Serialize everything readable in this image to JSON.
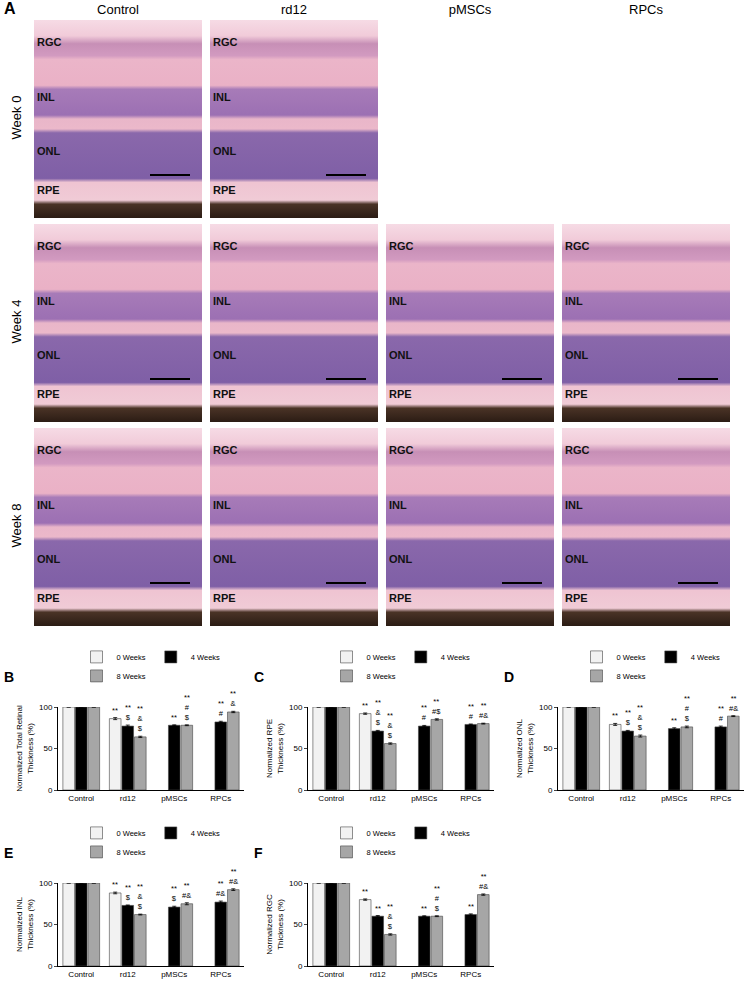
{
  "panel_a": {
    "label": "A",
    "columns": [
      "Control",
      "rd12",
      "pMSCs",
      "RPCs"
    ],
    "rows": [
      "Week 0",
      "Week 4",
      "Week 8"
    ],
    "layers": [
      "RGC",
      "INL",
      "ONL",
      "RPE"
    ],
    "images": [
      [
        true,
        true,
        false,
        false
      ],
      [
        true,
        true,
        true,
        true
      ],
      [
        true,
        true,
        true,
        true
      ]
    ]
  },
  "chart_data": [
    {
      "type": "bar",
      "label": "B",
      "y_label": [
        "Normalized Total Retinal",
        "Thickness (%)"
      ],
      "categories": [
        "Control",
        "rd12",
        "pMSCs",
        "RPCs"
      ],
      "ylim": [
        0,
        100
      ],
      "yticks": [
        0,
        50,
        100
      ],
      "grid": false,
      "legend": "top",
      "series": [
        {
          "name": "0 Weeks",
          "color": "#f2f2f2",
          "values": [
            100,
            86,
            null,
            null
          ],
          "errors": [
            0,
            1.2,
            null,
            null
          ],
          "annotations": [
            null,
            [
              "**"
            ],
            null,
            null
          ]
        },
        {
          "name": "4 Weeks",
          "color": "#000000",
          "values": [
            100,
            77,
            78,
            82
          ],
          "errors": [
            0,
            1.2,
            0.5,
            0.8
          ],
          "annotations": [
            null,
            [
              "**",
              "$"
            ],
            [
              "**"
            ],
            [
              "**",
              "#"
            ]
          ]
        },
        {
          "name": "8 Weeks",
          "color": "#a6a6a6",
          "values": [
            100,
            64,
            78,
            94
          ],
          "errors": [
            0,
            0.8,
            0.5,
            0.8
          ],
          "annotations": [
            null,
            [
              "**",
              "&",
              "$"
            ],
            [
              "**",
              "#",
              "$"
            ],
            [
              "**",
              "&"
            ]
          ]
        }
      ]
    },
    {
      "type": "bar",
      "label": "C",
      "y_label": [
        "Normalized RPE",
        "Thickness (%)"
      ],
      "categories": [
        "Control",
        "rd12",
        "pMSCs",
        "RPCs"
      ],
      "ylim": [
        0,
        100
      ],
      "yticks": [
        0,
        50,
        100
      ],
      "grid": false,
      "legend": "top",
      "series": [
        {
          "name": "0 Weeks",
          "color": "#f2f2f2",
          "values": [
            100,
            92,
            null,
            null
          ],
          "errors": [
            0,
            0.8,
            null,
            null
          ],
          "annotations": [
            null,
            [
              "**"
            ],
            null,
            null
          ]
        },
        {
          "name": "4 Weeks",
          "color": "#000000",
          "values": [
            100,
            71,
            77,
            79
          ],
          "errors": [
            0,
            0.8,
            0.8,
            0.5
          ],
          "annotations": [
            null,
            [
              "**",
              "&",
              "$"
            ],
            [
              "**",
              "#"
            ],
            [
              "**",
              "#"
            ]
          ]
        },
        {
          "name": "8 Weeks",
          "color": "#a6a6a6",
          "values": [
            100,
            56,
            85,
            80
          ],
          "errors": [
            0,
            0.8,
            0.8,
            0.5
          ],
          "annotations": [
            null,
            [
              "**",
              "&",
              "$"
            ],
            [
              "**",
              "#$"
            ],
            [
              "**",
              "#&"
            ]
          ]
        }
      ]
    },
    {
      "type": "bar",
      "label": "D",
      "y_label": [
        "Normalized ONL",
        "Thickness (%)"
      ],
      "categories": [
        "Control",
        "rd12",
        "pMSCs",
        "RPCs"
      ],
      "ylim": [
        0,
        100
      ],
      "yticks": [
        0,
        50,
        100
      ],
      "grid": false,
      "legend": "top",
      "series": [
        {
          "name": "0 Weeks",
          "color": "#f2f2f2",
          "values": [
            100,
            79,
            null,
            null
          ],
          "errors": [
            0,
            1.2,
            null,
            null
          ],
          "annotations": [
            null,
            [
              "**"
            ],
            null,
            null
          ]
        },
        {
          "name": "4 Weeks",
          "color": "#000000",
          "values": [
            100,
            71,
            74,
            76
          ],
          "errors": [
            0,
            0.8,
            1,
            1
          ],
          "annotations": [
            null,
            [
              "**",
              "$"
            ],
            [
              "**"
            ],
            [
              "**",
              "#"
            ]
          ]
        },
        {
          "name": "8 Weeks",
          "color": "#a6a6a6",
          "values": [
            100,
            65,
            76,
            89
          ],
          "errors": [
            0,
            1.2,
            1,
            0.5
          ],
          "annotations": [
            null,
            [
              "**",
              "&",
              "$"
            ],
            [
              "**",
              "#",
              "$"
            ],
            [
              "**",
              "#&"
            ]
          ]
        }
      ]
    },
    {
      "type": "bar",
      "label": "E",
      "y_label": [
        "Normalized INL",
        "Thickness (%)"
      ],
      "categories": [
        "Control",
        "rd12",
        "pMSCs",
        "RPCs"
      ],
      "ylim": [
        0,
        100
      ],
      "yticks": [
        0,
        50,
        100
      ],
      "grid": false,
      "legend": "top",
      "series": [
        {
          "name": "0 Weeks",
          "color": "#f2f2f2",
          "values": [
            100,
            88,
            null,
            null
          ],
          "errors": [
            0,
            1,
            null,
            null
          ],
          "annotations": [
            null,
            [
              "**"
            ],
            null,
            null
          ]
        },
        {
          "name": "4 Weeks",
          "color": "#000000",
          "values": [
            100,
            73,
            71,
            77
          ],
          "errors": [
            0,
            0.5,
            1,
            1.2
          ],
          "annotations": [
            null,
            [
              "**",
              "$"
            ],
            [
              "**",
              "$"
            ],
            [
              "**",
              "#&"
            ]
          ]
        },
        {
          "name": "8 Weeks",
          "color": "#a6a6a6",
          "values": [
            100,
            62,
            75,
            92
          ],
          "errors": [
            0,
            0.5,
            1.2,
            1
          ],
          "annotations": [
            null,
            [
              "**",
              "&",
              "$"
            ],
            [
              "**",
              "#&"
            ],
            [
              "**",
              "#&"
            ]
          ]
        }
      ]
    },
    {
      "type": "bar",
      "label": "F",
      "y_label": [
        "Normalized RGC",
        "Thickness (%)"
      ],
      "categories": [
        "Control",
        "rd12",
        "pMSCs",
        "RPCs"
      ],
      "ylim": [
        0,
        100
      ],
      "yticks": [
        0,
        50,
        100
      ],
      "grid": false,
      "legend": "top",
      "series": [
        {
          "name": "0 Weeks",
          "color": "#f2f2f2",
          "values": [
            100,
            80,
            null,
            null
          ],
          "errors": [
            0,
            0.8,
            null,
            null
          ],
          "annotations": [
            null,
            [
              "**"
            ],
            null,
            null
          ]
        },
        {
          "name": "4 Weeks",
          "color": "#000000",
          "values": [
            100,
            60,
            60,
            62
          ],
          "errors": [
            0,
            0.8,
            0.5,
            0.8
          ],
          "annotations": [
            null,
            [
              "**"
            ],
            [
              "**"
            ],
            [
              "**"
            ]
          ]
        },
        {
          "name": "8 Weeks",
          "color": "#a6a6a6",
          "values": [
            100,
            38,
            60,
            86
          ],
          "errors": [
            0,
            0.8,
            0.5,
            0.8
          ],
          "annotations": [
            null,
            [
              "**",
              "&",
              "$"
            ],
            [
              "**",
              "#",
              "$"
            ],
            [
              "**",
              "#&"
            ]
          ]
        }
      ]
    }
  ]
}
